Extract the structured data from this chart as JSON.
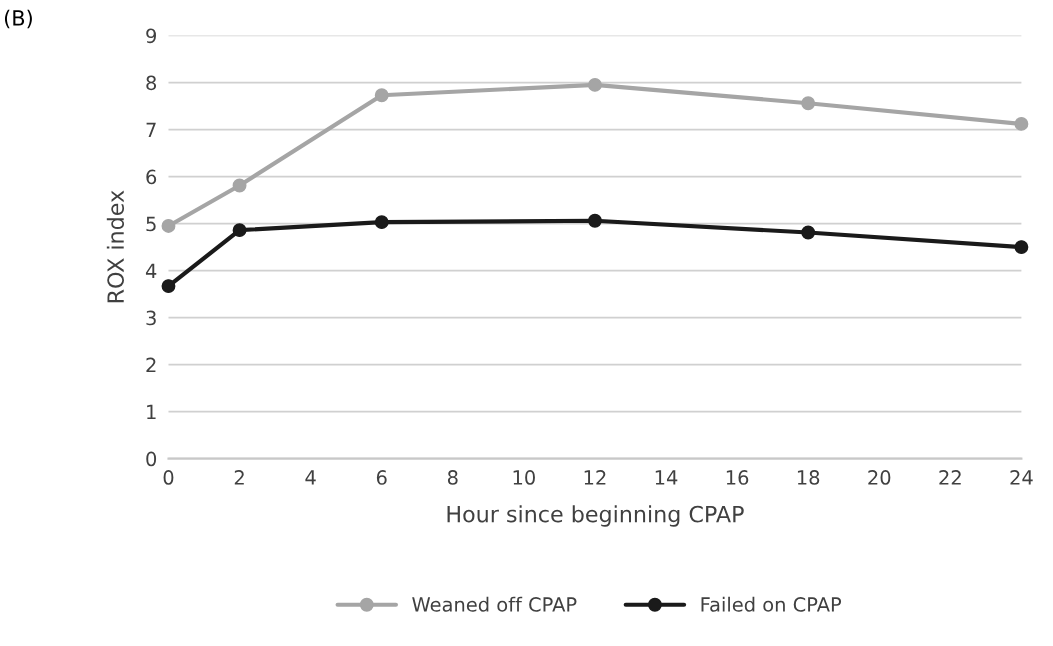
{
  "chart_data": {
    "type": "line",
    "xlabel": "Hour since beginning CPAP",
    "ylabel": "ROX index",
    "annotations": [
      "(B)"
    ],
    "x": [
      0,
      2,
      6,
      12,
      18,
      24
    ],
    "series": [
      {
        "name": "Weaned off CPAP",
        "color": "#a5a5a5",
        "values": [
          4.95,
          5.81,
          7.73,
          7.95,
          7.56,
          7.12
        ]
      },
      {
        "name": "Failed on CPAP",
        "color": "#1a1a1a",
        "values": [
          3.67,
          4.86,
          5.03,
          5.06,
          4.81,
          4.5
        ]
      }
    ],
    "xlim": [
      0,
      24
    ],
    "xticks": [
      0,
      2,
      4,
      6,
      8,
      10,
      12,
      14,
      16,
      18,
      20,
      22,
      24
    ],
    "ylim": [
      0,
      9
    ],
    "yticks": [
      0,
      1,
      2,
      3,
      4,
      5,
      6,
      7,
      8,
      9
    ],
    "grid": "y",
    "legend": "bottom",
    "marker": "circle",
    "line_style": "solid"
  }
}
